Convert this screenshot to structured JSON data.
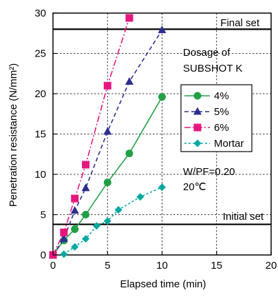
{
  "chart_data": {
    "type": "line",
    "xlabel": "Elapsed time (min)",
    "ylabel": "Penetration resistance (N/mm²)",
    "xlim": [
      0,
      20
    ],
    "ylim": [
      0,
      30
    ],
    "x_ticks": [
      "0",
      "5",
      "10",
      "15",
      "20"
    ],
    "y_ticks": [
      "0",
      "5",
      "10",
      "15",
      "20",
      "25",
      "30"
    ],
    "grid": true,
    "legend_title_line1": "Dosage of",
    "legend_title_line2": "SUBSHOT K",
    "legend_position": "right",
    "annotations": {
      "final_set": "Final set",
      "initial_set": "Initial set",
      "wpf": "W/PF=0.20",
      "temp": "20℃"
    },
    "reference_lines": {
      "final_set": 28,
      "initial_set": 3.8
    },
    "series": [
      {
        "name": "4%",
        "color": "#22a046",
        "dash": "solid",
        "marker": "circle",
        "x": [
          0,
          1,
          2,
          3,
          5,
          7,
          10
        ],
        "y": [
          0,
          1.8,
          3.2,
          5.0,
          9.0,
          12.6,
          19.6
        ]
      },
      {
        "name": "5%",
        "color": "#2b2f8f",
        "dash": "dashed",
        "marker": "triangle",
        "x": [
          0,
          1,
          2,
          3,
          5,
          7,
          10
        ],
        "y": [
          0,
          2.0,
          5.5,
          8.3,
          15.3,
          21.5,
          27.9
        ]
      },
      {
        "name": "6%",
        "color": "#e5177e",
        "dash": "dashdot",
        "marker": "square",
        "x": [
          0,
          1,
          2,
          3,
          5,
          7
        ],
        "y": [
          0,
          2.8,
          7.0,
          11.2,
          21.0,
          29.4
        ]
      },
      {
        "name": "Mortar",
        "color": "#00a8a0",
        "dash": "dotted",
        "marker": "diamond",
        "x": [
          1,
          2,
          3,
          4,
          5,
          6,
          8,
          10
        ],
        "y": [
          0.1,
          1.0,
          2.0,
          3.6,
          4.2,
          5.6,
          7.2,
          8.4
        ]
      }
    ]
  }
}
